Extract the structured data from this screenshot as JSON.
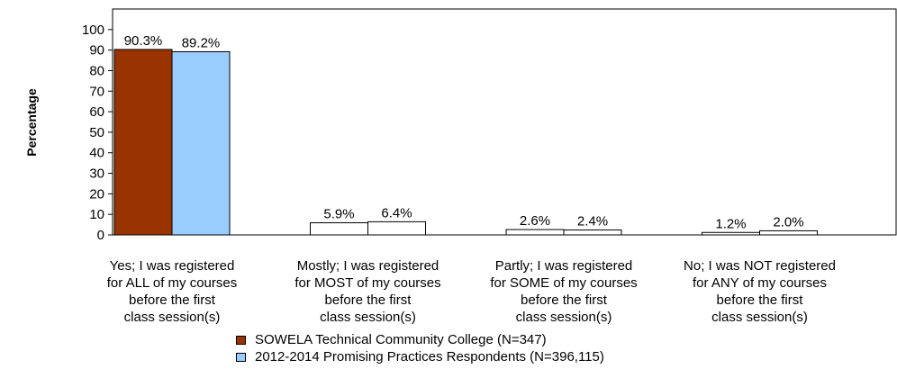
{
  "chart_data": {
    "type": "bar",
    "title": "",
    "xlabel": "",
    "ylabel": "Percentage",
    "ylim": [
      0,
      110
    ],
    "yticks": [
      0,
      10,
      20,
      30,
      40,
      50,
      60,
      70,
      80,
      90,
      100
    ],
    "categories": [
      [
        "Yes; I was registered",
        "for ALL of my courses",
        "before the first",
        "class session(s)"
      ],
      [
        "Mostly; I was registered",
        "for MOST of my courses",
        "before the first",
        "class session(s)"
      ],
      [
        "Partly; I was registered",
        "for SOME of my courses",
        "before the first",
        "class session(s)"
      ],
      [
        "No; I was NOT registered",
        "for ANY of my courses",
        "before the first",
        "class session(s)"
      ]
    ],
    "series": [
      {
        "name": "SOWELA Technical Community College (N=347)",
        "values": [
          90.3,
          5.9,
          2.6,
          1.2
        ],
        "labels": [
          "90.3%",
          "5.9%",
          "2.6%",
          "1.2%"
        ],
        "color": "#993300"
      },
      {
        "name": "2012-2014 Promising Practices Respondents (N=396,115)",
        "values": [
          89.2,
          6.4,
          2.4,
          2.0
        ],
        "labels": [
          "89.2%",
          "6.4%",
          "2.4%",
          "2.0%"
        ],
        "color": "#99ccff"
      }
    ],
    "highlight_category_index": 0,
    "unhighlighted_fill": "#ffffff",
    "grid": false,
    "legend_position": "bottom"
  }
}
